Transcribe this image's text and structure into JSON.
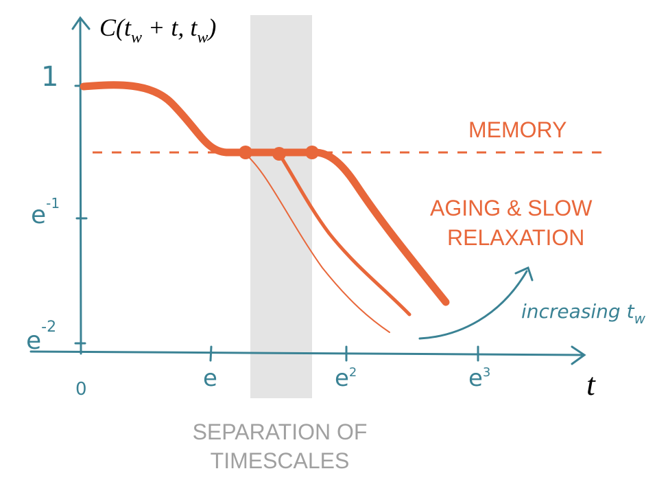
{
  "axes": {
    "y_label": [
      "C(t",
      "w",
      " + t, t",
      "w",
      ")"
    ],
    "x_label": "t",
    "y_ticks": [
      {
        "base": "1"
      },
      {
        "base": "e",
        "sup": "-1"
      },
      {
        "base": "e",
        "sup": "-2"
      }
    ],
    "x_ticks": [
      {
        "base": "0"
      },
      {
        "base": "e"
      },
      {
        "base": "e",
        "sup": "2"
      },
      {
        "base": "e",
        "sup": "3"
      }
    ]
  },
  "annotations": {
    "memory": "MEMORY",
    "aging": [
      "AGING & SLOW",
      "RELAXATION"
    ],
    "increasing": [
      "increasing t",
      "w"
    ],
    "separation": [
      "SEPARATION OF",
      "TIMESCALES"
    ]
  }
}
